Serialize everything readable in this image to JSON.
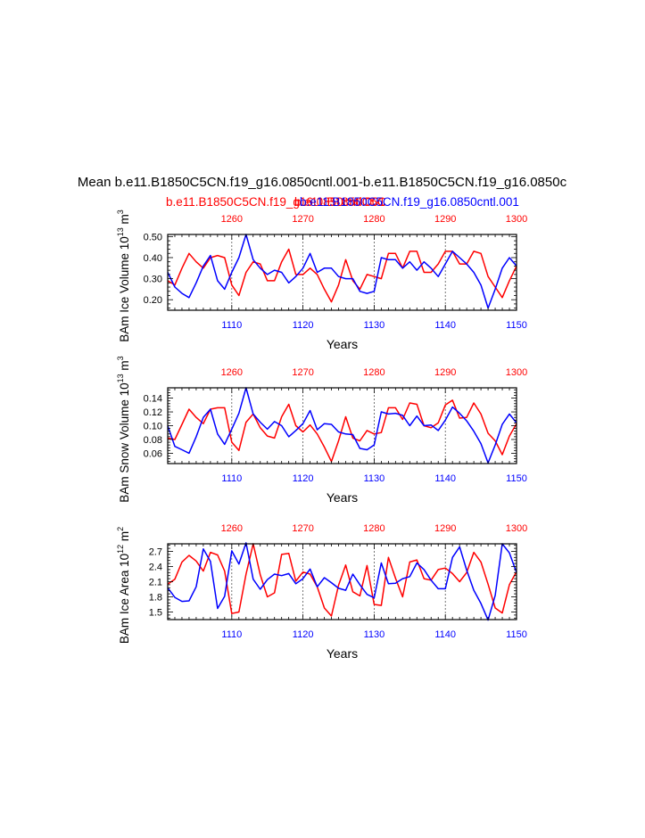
{
  "title": "Mean b.e11.B1850C5CN.f19_g16.0850cntl.001-b.e11.B1850C5CN.f19_g16.0850c",
  "legend": {
    "red_label": "b.e11.B1850C5CN.f19_g16.0850cntl.001",
    "blue_label": "b.e11.B1850C5CN.f19_g16.0850cntl.001",
    "mid_label": "b.e11.B1850C5C"
  },
  "colors": {
    "case1": "#ff0000",
    "case2": "#0000ff",
    "axis": "#000000",
    "grid": "#555555"
  },
  "chart_data": [
    {
      "type": "line",
      "ylabel": "BAm Ice Volume 10",
      "ylabel_exp": "13",
      "ylabel_unit": " m",
      "ylabel_unit_exp": "3",
      "xlabel": "Years",
      "xlim": [
        1101,
        1150
      ],
      "top_xlim": [
        1251,
        1300
      ],
      "ylim": [
        0.15,
        0.51
      ],
      "yticks": [
        0.2,
        0.3,
        0.4,
        0.5
      ],
      "ytick_labels": [
        "0.20",
        "0.30",
        "0.40",
        "0.50"
      ],
      "xticks": [
        1110,
        1120,
        1130,
        1140,
        1150
      ],
      "top_xticks": [
        1260,
        1270,
        1280,
        1290,
        1300
      ],
      "grid_x": [
        1110,
        1120,
        1130,
        1140
      ],
      "series": [
        {
          "color": "#ff0000",
          "x_start": 1101,
          "values": [
            0.29,
            0.27,
            0.35,
            0.42,
            0.38,
            0.35,
            0.4,
            0.41,
            0.4,
            0.27,
            0.22,
            0.33,
            0.38,
            0.37,
            0.29,
            0.29,
            0.38,
            0.44,
            0.32,
            0.32,
            0.35,
            0.32,
            0.25,
            0.19,
            0.27,
            0.39,
            0.29,
            0.25,
            0.32,
            0.31,
            0.3,
            0.42,
            0.42,
            0.35,
            0.43,
            0.43,
            0.33,
            0.33,
            0.37,
            0.43,
            0.43,
            0.37,
            0.37,
            0.43,
            0.42,
            0.31,
            0.26,
            0.21,
            0.29,
            0.36
          ]
        },
        {
          "color": "#0000ff",
          "x_start": 1101,
          "values": [
            0.33,
            0.26,
            0.23,
            0.21,
            0.28,
            0.36,
            0.41,
            0.29,
            0.25,
            0.33,
            0.4,
            0.51,
            0.39,
            0.35,
            0.32,
            0.34,
            0.33,
            0.28,
            0.31,
            0.35,
            0.42,
            0.33,
            0.35,
            0.35,
            0.31,
            0.3,
            0.3,
            0.24,
            0.23,
            0.24,
            0.4,
            0.39,
            0.39,
            0.35,
            0.38,
            0.34,
            0.38,
            0.35,
            0.31,
            0.37,
            0.43,
            0.4,
            0.37,
            0.33,
            0.27,
            0.16,
            0.25,
            0.35,
            0.4,
            0.36
          ]
        }
      ]
    },
    {
      "type": "line",
      "ylabel": "BAm Snow Volume 10",
      "ylabel_exp": "13",
      "ylabel_unit": " m",
      "ylabel_unit_exp": "3",
      "xlabel": "Years",
      "xlim": [
        1101,
        1150
      ],
      "top_xlim": [
        1251,
        1300
      ],
      "ylim": [
        0.045,
        0.155
      ],
      "yticks": [
        0.06,
        0.08,
        0.1,
        0.12,
        0.14
      ],
      "ytick_labels": [
        "0.06",
        "0.08",
        "0.10",
        "0.12",
        "0.14"
      ],
      "xticks": [
        1110,
        1120,
        1130,
        1140,
        1150
      ],
      "top_xticks": [
        1260,
        1270,
        1280,
        1290,
        1300
      ],
      "grid_x": [
        1110,
        1120,
        1130,
        1140
      ],
      "series": [
        {
          "color": "#ff0000",
          "x_start": 1101,
          "values": [
            0.082,
            0.08,
            0.102,
            0.124,
            0.112,
            0.103,
            0.124,
            0.126,
            0.126,
            0.076,
            0.064,
            0.105,
            0.117,
            0.097,
            0.085,
            0.082,
            0.113,
            0.131,
            0.1,
            0.091,
            0.101,
            0.088,
            0.069,
            0.048,
            0.078,
            0.113,
            0.082,
            0.078,
            0.093,
            0.088,
            0.09,
            0.126,
            0.126,
            0.109,
            0.133,
            0.131,
            0.1,
            0.097,
            0.104,
            0.13,
            0.137,
            0.111,
            0.112,
            0.133,
            0.117,
            0.089,
            0.078,
            0.058,
            0.085,
            0.103
          ]
        },
        {
          "color": "#0000ff",
          "x_start": 1101,
          "values": [
            0.1,
            0.07,
            0.065,
            0.06,
            0.084,
            0.112,
            0.124,
            0.088,
            0.073,
            0.095,
            0.118,
            0.155,
            0.117,
            0.105,
            0.095,
            0.106,
            0.1,
            0.084,
            0.093,
            0.103,
            0.122,
            0.094,
            0.103,
            0.102,
            0.091,
            0.088,
            0.087,
            0.067,
            0.065,
            0.072,
            0.12,
            0.117,
            0.118,
            0.115,
            0.1,
            0.114,
            0.1,
            0.101,
            0.093,
            0.108,
            0.127,
            0.118,
            0.107,
            0.092,
            0.074,
            0.046,
            0.072,
            0.102,
            0.117,
            0.104
          ]
        }
      ]
    },
    {
      "type": "line",
      "ylabel": "BAm Ice Area 10",
      "ylabel_exp": "12",
      "ylabel_unit": " m",
      "ylabel_unit_exp": "2",
      "xlabel": "Years",
      "xlim": [
        1101,
        1150
      ],
      "top_xlim": [
        1251,
        1300
      ],
      "ylim": [
        1.35,
        2.85
      ],
      "yticks": [
        1.5,
        1.8,
        2.1,
        2.4,
        2.7
      ],
      "ytick_labels": [
        "1.5",
        "1.8",
        "2.1",
        "2.4",
        "2.7"
      ],
      "xticks": [
        1110,
        1120,
        1130,
        1140,
        1150
      ],
      "top_xticks": [
        1260,
        1270,
        1280,
        1290,
        1300
      ],
      "grid_x": [
        1110,
        1120,
        1130,
        1140
      ],
      "series": [
        {
          "color": "#ff0000",
          "x_start": 1101,
          "values": [
            2.05,
            2.15,
            2.49,
            2.62,
            2.51,
            2.31,
            2.68,
            2.63,
            2.31,
            1.47,
            1.5,
            2.25,
            2.85,
            2.24,
            1.8,
            1.88,
            2.64,
            2.66,
            2.11,
            2.29,
            2.25,
            2.0,
            1.58,
            1.42,
            2.03,
            2.43,
            1.9,
            1.82,
            2.42,
            1.65,
            1.63,
            2.58,
            2.17,
            1.8,
            2.49,
            2.53,
            2.16,
            2.13,
            2.34,
            2.37,
            2.26,
            2.1,
            2.28,
            2.68,
            2.49,
            2.05,
            1.58,
            1.48,
            2.04,
            2.3
          ]
        },
        {
          "color": "#0000ff",
          "x_start": 1101,
          "values": [
            1.98,
            1.79,
            1.71,
            1.72,
            2.0,
            2.75,
            2.5,
            1.57,
            1.81,
            2.71,
            2.45,
            2.87,
            2.15,
            1.95,
            2.14,
            2.25,
            2.22,
            2.26,
            2.06,
            2.16,
            2.35,
            2.0,
            2.18,
            2.08,
            1.97,
            1.93,
            2.25,
            2.04,
            1.85,
            1.78,
            2.47,
            2.06,
            2.07,
            2.16,
            2.2,
            2.47,
            2.34,
            2.13,
            1.96,
            1.96,
            2.58,
            2.79,
            2.33,
            1.93,
            1.67,
            1.34,
            1.83,
            2.85,
            2.67,
            2.28
          ]
        }
      ]
    }
  ]
}
